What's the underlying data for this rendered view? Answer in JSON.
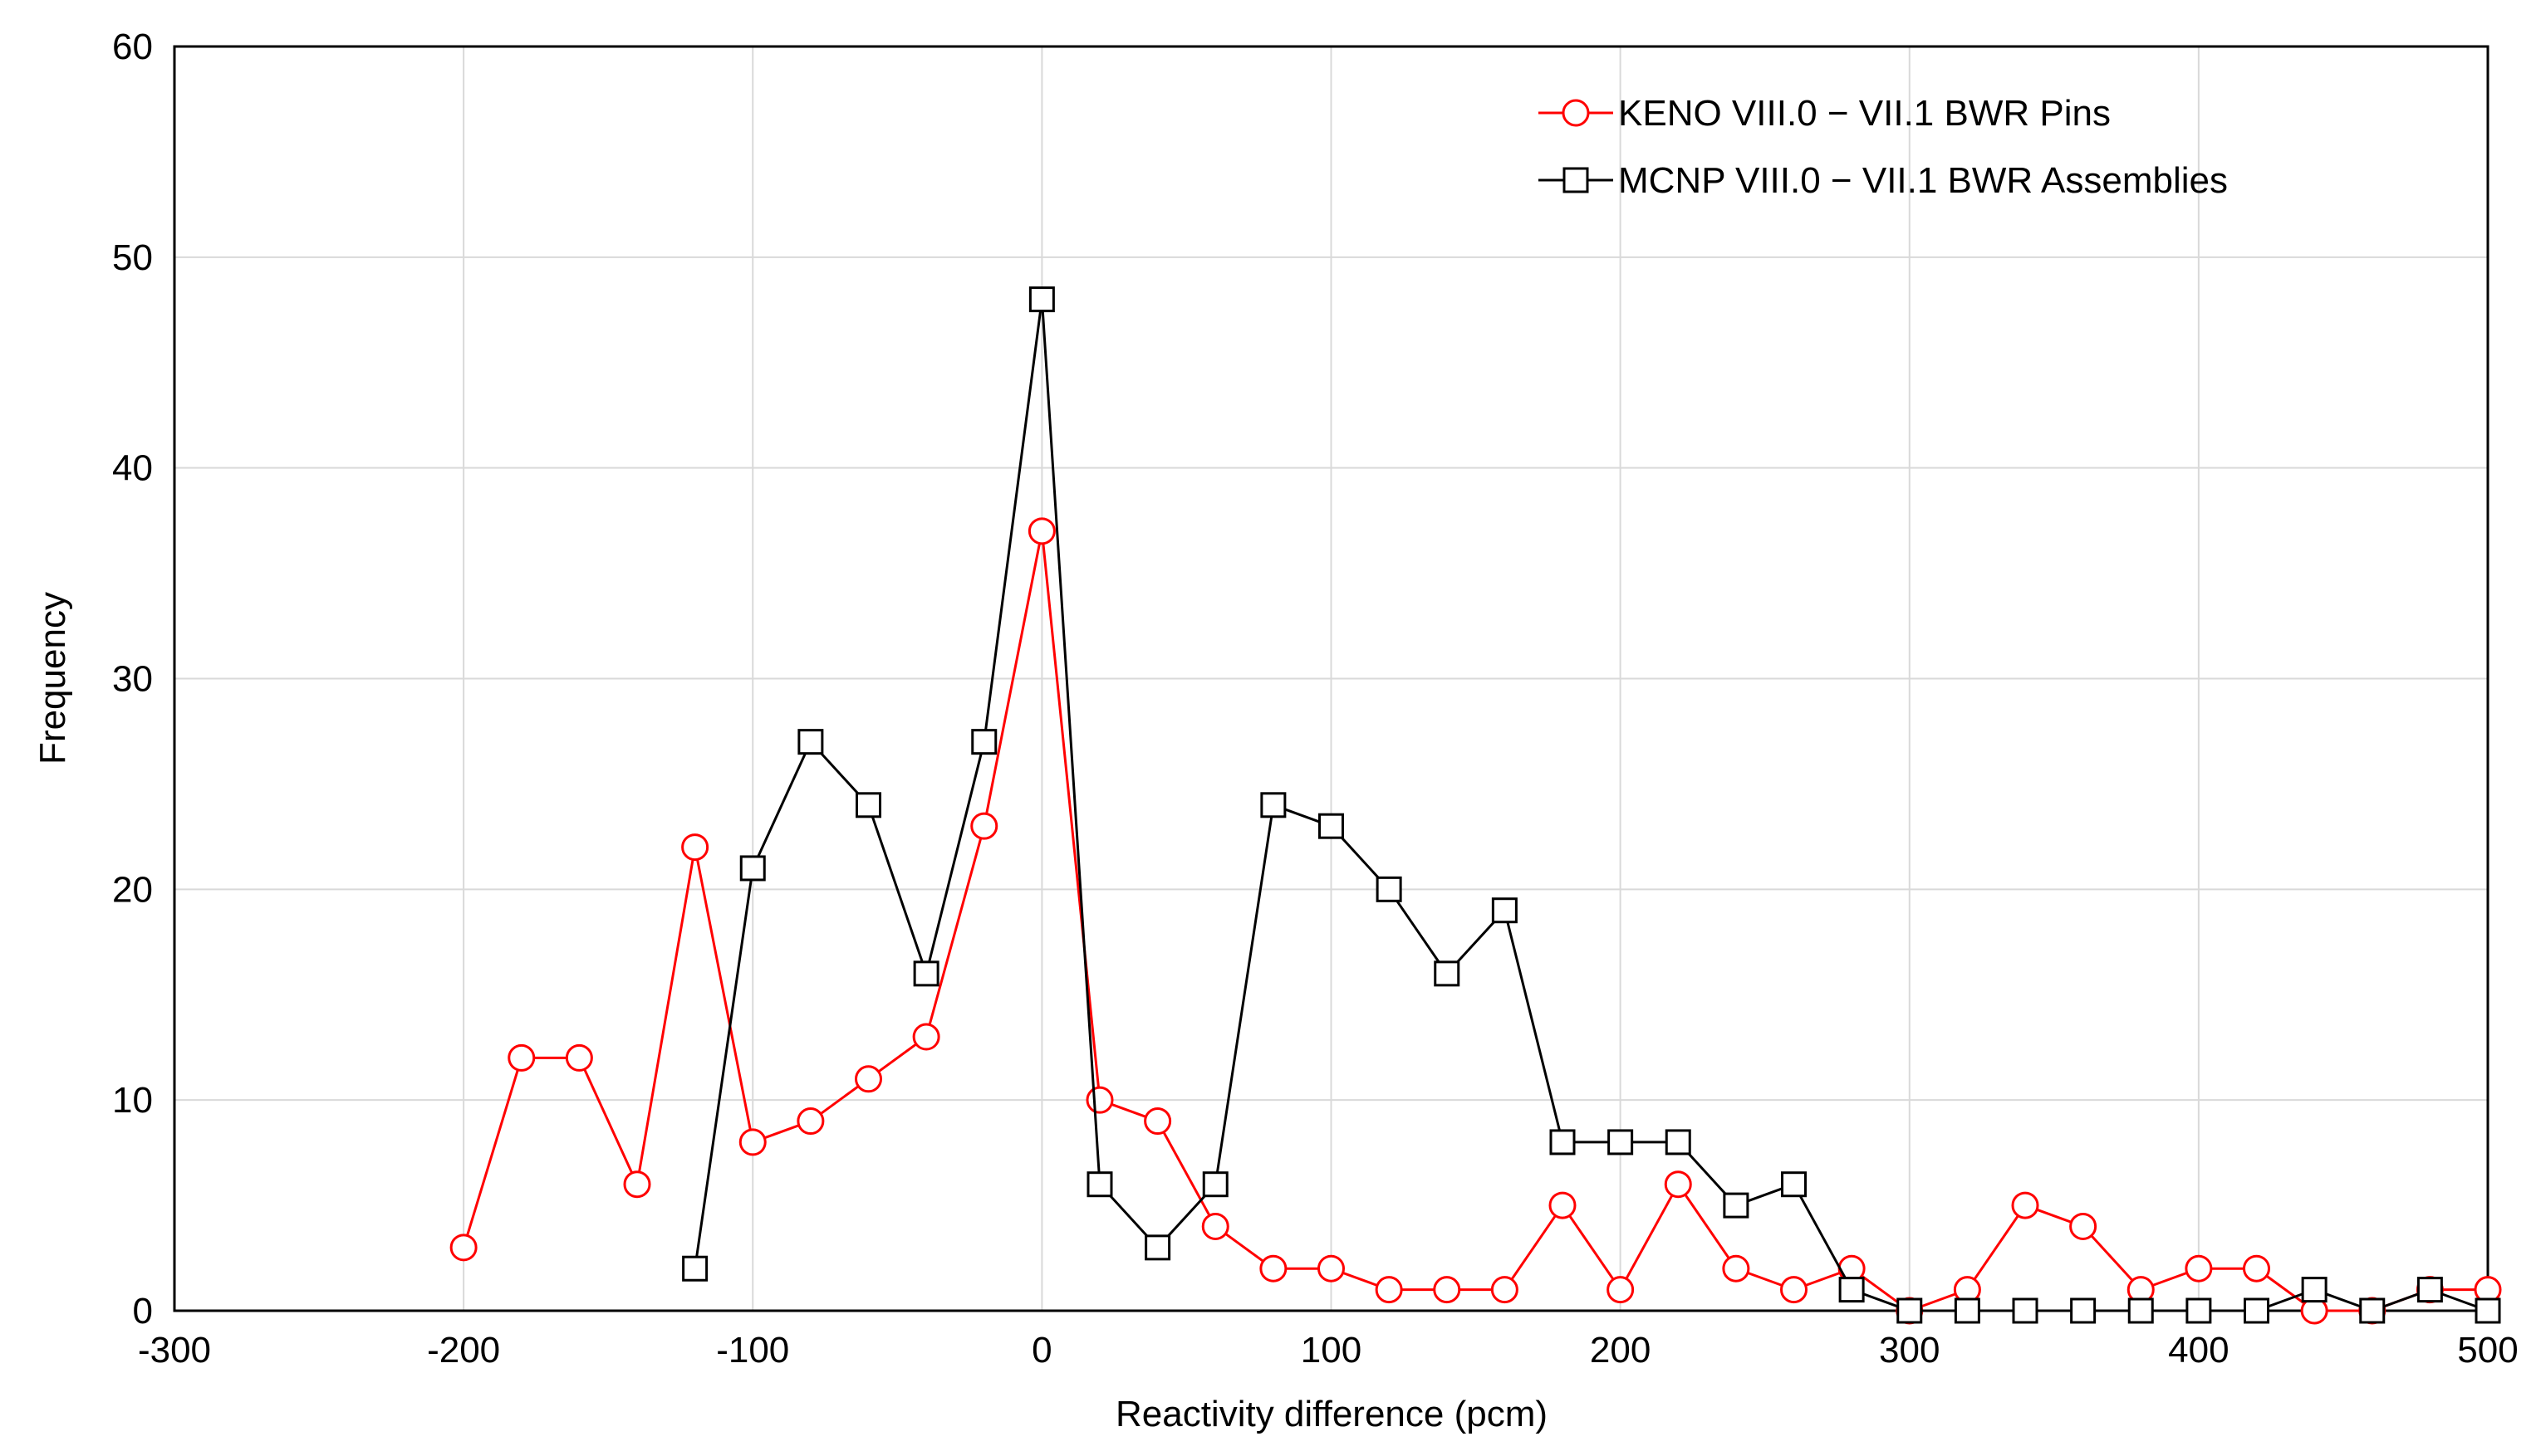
{
  "chart_data": {
    "type": "line",
    "title": "",
    "xlabel": "Reactivity difference (pcm)",
    "ylabel": "Frequency",
    "xlim": [
      -300,
      500
    ],
    "ylim": [
      0,
      60
    ],
    "x_ticks": [
      -300,
      -200,
      -100,
      0,
      100,
      200,
      300,
      400,
      500
    ],
    "y_ticks": [
      0,
      10,
      20,
      30,
      40,
      50,
      60
    ],
    "grid": true,
    "legend_position": "top-right",
    "series": [
      {
        "name": "KENO VIII.0 − VII.1 BWR Pins",
        "color": "#ff0000",
        "marker": "circle",
        "x": [
          -200,
          -180,
          -160,
          -140,
          -120,
          -100,
          -80,
          -60,
          -40,
          -20,
          0,
          20,
          40,
          60,
          80,
          100,
          120,
          140,
          160,
          180,
          200,
          220,
          240,
          260,
          280,
          300,
          320,
          340,
          360,
          380,
          400,
          420,
          440,
          460,
          480,
          500
        ],
        "values": [
          3,
          12,
          12,
          6,
          22,
          8,
          9,
          11,
          13,
          23,
          37,
          10,
          9,
          4,
          2,
          2,
          1,
          1,
          1,
          5,
          1,
          6,
          2,
          1,
          2,
          0,
          1,
          5,
          4,
          1,
          2,
          2,
          0,
          0,
          1,
          1
        ]
      },
      {
        "name": "MCNP VIII.0 − VII.1 BWR Assemblies",
        "color": "#000000",
        "marker": "square",
        "x": [
          -120,
          -100,
          -80,
          -60,
          -40,
          -20,
          0,
          20,
          40,
          60,
          80,
          100,
          120,
          140,
          160,
          180,
          200,
          220,
          240,
          260,
          280,
          300,
          320,
          340,
          360,
          380,
          400,
          420,
          440,
          460,
          480,
          500
        ],
        "values": [
          2,
          21,
          27,
          24,
          16,
          27,
          48,
          6,
          3,
          6,
          24,
          23,
          20,
          16,
          19,
          8,
          8,
          8,
          5,
          6,
          1,
          0,
          0,
          0,
          0,
          0,
          0,
          0,
          1,
          0,
          1,
          0
        ]
      }
    ]
  }
}
